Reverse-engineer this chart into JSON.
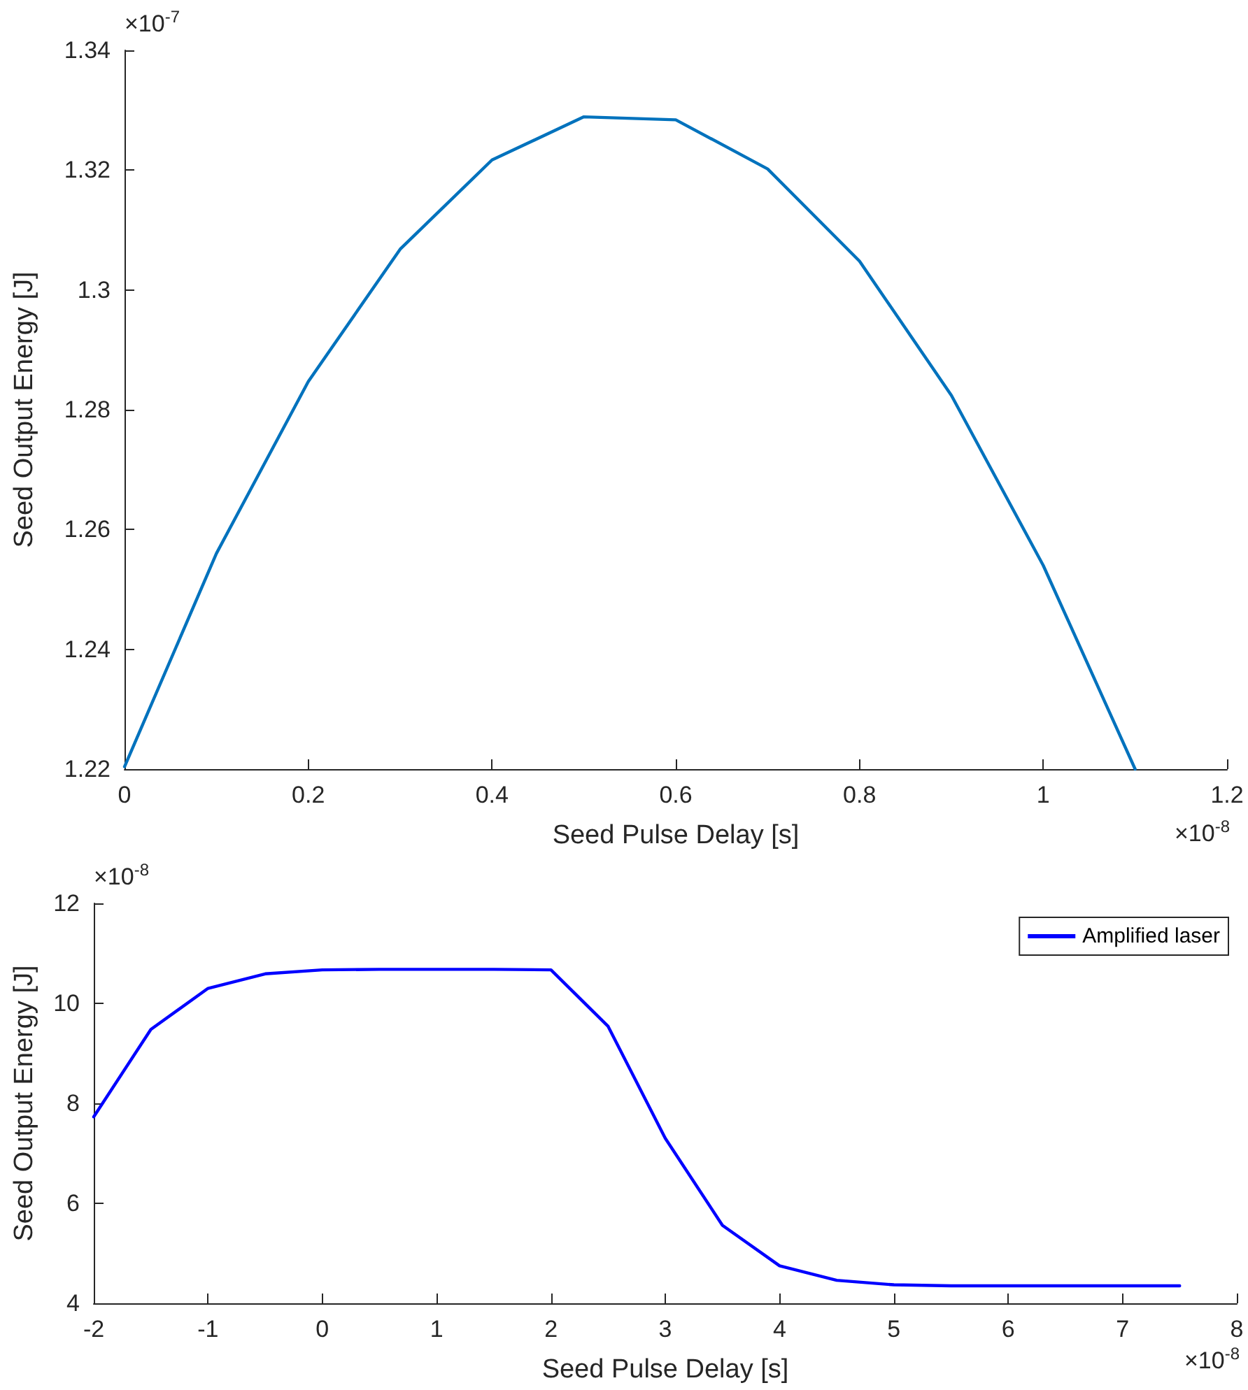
{
  "chart_data": [
    {
      "type": "line",
      "xlabel": "Seed Pulse Delay [s]",
      "ylabel": "Seed Output Energy [J]",
      "annotations": [
        "×10$^{-7}$",
        "×10$^{-8}$"
      ],
      "x": [
        0,
        0.1,
        0.2,
        0.3,
        0.4,
        0.5,
        0.6,
        0.7,
        0.8,
        0.9,
        1.0,
        1.1
      ],
      "series": [
        {
          "color": "#0072bd",
          "values": [
            1.2204,
            1.256,
            1.2847,
            1.3068,
            1.3217,
            1.3289,
            1.3284,
            1.3202,
            1.3048,
            1.2824,
            1.254,
            1.22
          ]
        }
      ],
      "xlim": [
        0,
        1.2
      ],
      "xticks": [
        0,
        0.2,
        0.4,
        0.6,
        0.8,
        1,
        1.2
      ],
      "ylim": [
        1.22,
        1.34
      ],
      "yticks": [
        1.22,
        1.24,
        1.26,
        1.28,
        1.3,
        1.32,
        1.34
      ],
      "grid": false,
      "legend": false,
      "marker": "none",
      "line_style": "solid"
    },
    {
      "type": "line",
      "xlabel": "Seed Pulse Delay [s]",
      "ylabel": "Seed Output Energy [J]",
      "annotations": [
        "×10$^{-8}$",
        "×10$^{-8}$"
      ],
      "x": [
        -2,
        -1.5,
        -1,
        -0.5,
        0,
        0.5,
        1,
        1.5,
        2,
        2.5,
        3,
        3.5,
        4,
        4.5,
        5,
        5.5,
        6,
        6.5,
        7,
        7.5
      ],
      "series": [
        {
          "name": "Amplified laser",
          "color": "#0000ff",
          "values": [
            7.73,
            9.48,
            10.3,
            10.59,
            10.67,
            10.68,
            10.68,
            10.68,
            10.67,
            9.54,
            7.3,
            5.56,
            4.75,
            4.46,
            4.37,
            4.35,
            4.35,
            4.35,
            4.35,
            4.35
          ]
        }
      ],
      "xlim": [
        -2,
        8
      ],
      "xticks": [
        -2,
        -1,
        0,
        1,
        2,
        3,
        4,
        5,
        6,
        7,
        8
      ],
      "ylim": [
        4,
        12
      ],
      "yticks": [
        4,
        6,
        8,
        10,
        12
      ],
      "grid": false,
      "legend": "top right",
      "marker": "none",
      "line_style": "solid"
    }
  ]
}
